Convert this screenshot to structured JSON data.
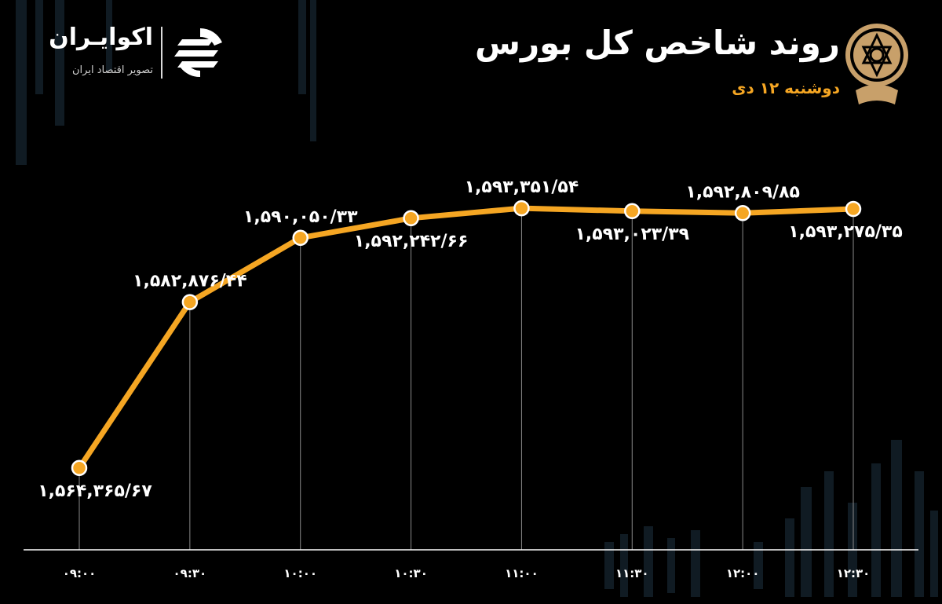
{
  "brand": {
    "name": "اکوایـران",
    "tagline": "تصویر اقتصاد ایران"
  },
  "header": {
    "title": "روند شاخص کل بورس",
    "date": "دوشنبه ۱۲ دی"
  },
  "colors": {
    "background": "#000000",
    "line": "#f5a623",
    "point_fill": "#f5a623",
    "point_stroke": "#ffffff",
    "label": "#ffffff",
    "axis": "#ffffff",
    "date": "#f5a623"
  },
  "chart_data": {
    "type": "line",
    "title": "روند شاخص کل بورس",
    "xlabel": "",
    "ylabel": "",
    "categories": [
      "۰۹:۰۰",
      "۰۹:۳۰",
      "۱۰:۰۰",
      "۱۰:۳۰",
      "۱۱:۰۰",
      "۱۱:۳۰",
      "۱۲:۰۰",
      "۱۲:۳۰"
    ],
    "values": [
      1564365.67,
      1582876.44,
      1590050.33,
      1592242.66,
      1593351.54,
      1593023.39,
      1592809.85,
      1593275.35
    ],
    "data_labels": [
      "۱,۵۶۴,۳۶۵/۶۷",
      "۱,۵۸۲,۸۷۶/۴۴",
      "۱,۵۹۰,۰۵۰/۳۳",
      "۱,۵۹۲,۲۴۲/۶۶",
      "۱,۵۹۳,۳۵۱/۵۴",
      "۱,۵۹۳,۰۲۳/۳۹",
      "۱,۵۹۲,۸۰۹/۸۵",
      "۱,۵۹۳,۲۷۵/۳۵"
    ],
    "label_positions": [
      "below",
      "above",
      "above",
      "below",
      "above",
      "below",
      "above",
      "below"
    ],
    "grid": false,
    "legend": "none"
  }
}
